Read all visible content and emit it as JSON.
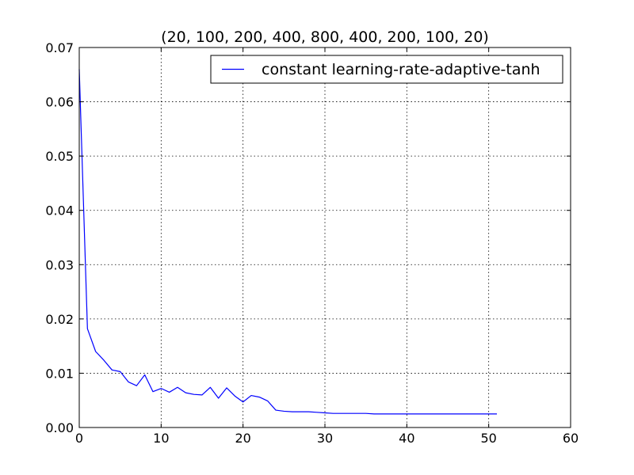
{
  "chart_data": {
    "type": "line",
    "title": "(20, 100, 200, 400, 800, 400, 200, 100, 20)",
    "xlabel": "",
    "ylabel": "",
    "xlim": [
      0,
      60
    ],
    "ylim": [
      0,
      0.07
    ],
    "xticks": [
      "0",
      "10",
      "20",
      "30",
      "40",
      "50",
      "60"
    ],
    "yticks": [
      "0.00",
      "0.01",
      "0.02",
      "0.03",
      "0.04",
      "0.05",
      "0.06",
      "0.07"
    ],
    "grid": true,
    "legend_position": "top-right",
    "series": [
      {
        "name": "constant learning-rate-adaptive-tanh",
        "color": "#0000ff",
        "x": [
          0,
          1,
          2,
          3,
          4,
          5,
          6,
          7,
          8,
          9,
          10,
          11,
          12,
          13,
          14,
          15,
          16,
          17,
          18,
          19,
          20,
          21,
          22,
          23,
          24,
          25,
          26,
          27,
          28,
          29,
          30,
          31,
          32,
          33,
          34,
          35,
          36,
          37,
          38,
          39,
          40,
          41,
          42,
          43,
          44,
          45,
          46,
          47,
          48,
          49,
          50,
          51
        ],
        "values": [
          0.066,
          0.0182,
          0.014,
          0.0124,
          0.0106,
          0.0103,
          0.0084,
          0.0077,
          0.0097,
          0.0066,
          0.0072,
          0.0065,
          0.0074,
          0.0064,
          0.0061,
          0.006,
          0.0074,
          0.0054,
          0.0073,
          0.0058,
          0.0047,
          0.0059,
          0.0056,
          0.0049,
          0.0032,
          0.003,
          0.0029,
          0.0029,
          0.0029,
          0.0028,
          0.0027,
          0.0026,
          0.0026,
          0.0026,
          0.0026,
          0.0026,
          0.0025,
          0.0025,
          0.0025,
          0.0025,
          0.0025,
          0.0025,
          0.0025,
          0.0025,
          0.0025,
          0.0025,
          0.0025,
          0.0025,
          0.0025,
          0.0025,
          0.0025,
          0.0025
        ]
      }
    ]
  }
}
